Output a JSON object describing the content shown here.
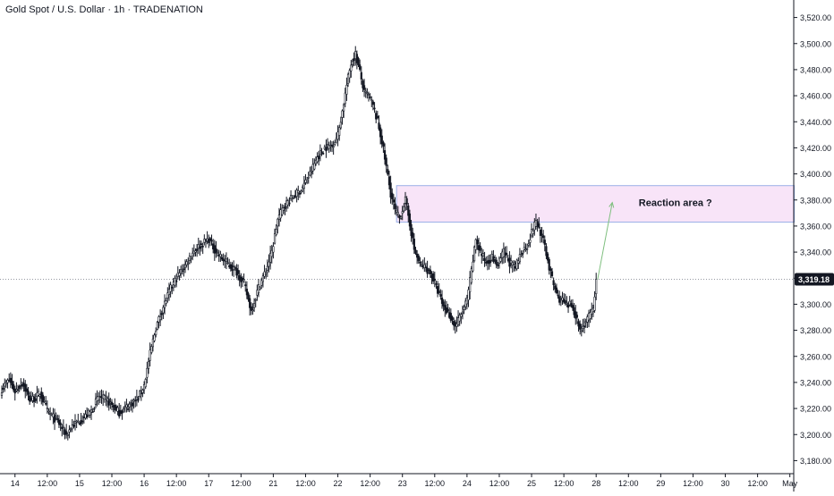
{
  "header": {
    "symbol_title": "Gold Spot / U.S. Dollar · 1h · TRADENATION"
  },
  "colors": {
    "candle": "#131722",
    "zone_fill": "#f8e4f8",
    "zone_border": "#9bb0e8",
    "arrow": "#7fbf7f",
    "price_line": "#9598a1",
    "price_label_bg": "#131722",
    "axis": "#131722",
    "axis_text": "#131722"
  },
  "chart_data": {
    "type": "candlestick",
    "title": "Gold Spot / U.S. Dollar · 1h · TRADENATION",
    "ylim": [
      3170,
      3530
    ],
    "y_ticks": [
      {
        "value": 3180,
        "label": "3,180.00"
      },
      {
        "value": 3200,
        "label": "3,200.00"
      },
      {
        "value": 3220,
        "label": "3,220.00"
      },
      {
        "value": 3240,
        "label": "3,240.00"
      },
      {
        "value": 3260,
        "label": "3,260.00"
      },
      {
        "value": 3280,
        "label": "3,280.00"
      },
      {
        "value": 3300,
        "label": "3,300.00"
      },
      {
        "value": 3320,
        "label": "3,320.00"
      },
      {
        "value": 3340,
        "label": "3,340.00"
      },
      {
        "value": 3360,
        "label": "3,360.00"
      },
      {
        "value": 3380,
        "label": "3,380.00"
      },
      {
        "value": 3400,
        "label": "3,400.00"
      },
      {
        "value": 3420,
        "label": "3,420.00"
      },
      {
        "value": 3440,
        "label": "3,440.00"
      },
      {
        "value": 3460,
        "label": "3,460.00"
      },
      {
        "value": 3480,
        "label": "3,480.00"
      },
      {
        "value": 3500,
        "label": "3,500.00"
      },
      {
        "value": 3520,
        "label": "3,520.00"
      }
    ],
    "x_ticks": [
      {
        "bar": 9,
        "label": "14"
      },
      {
        "bar": 31,
        "label": "12:00"
      },
      {
        "bar": 53,
        "label": "15"
      },
      {
        "bar": 75,
        "label": "12:00"
      },
      {
        "bar": 97,
        "label": "16"
      },
      {
        "bar": 119,
        "label": "12:00"
      },
      {
        "bar": 141,
        "label": "17"
      },
      {
        "bar": 163,
        "label": "12:00"
      },
      {
        "bar": 185,
        "label": "21"
      },
      {
        "bar": 207,
        "label": "12:00"
      },
      {
        "bar": 229,
        "label": "22"
      },
      {
        "bar": 251,
        "label": "12:00"
      },
      {
        "bar": 273,
        "label": "23"
      },
      {
        "bar": 295,
        "label": "12:00"
      },
      {
        "bar": 317,
        "label": "24"
      },
      {
        "bar": 339,
        "label": "12:00"
      },
      {
        "bar": 361,
        "label": "25"
      },
      {
        "bar": 383,
        "label": "12:00"
      },
      {
        "bar": 405,
        "label": "28"
      },
      {
        "bar": 427,
        "label": "12:00"
      },
      {
        "bar": 449,
        "label": "29"
      },
      {
        "bar": 471,
        "label": "12:00"
      },
      {
        "bar": 493,
        "label": "30"
      },
      {
        "bar": 515,
        "label": "12:00"
      },
      {
        "bar": 537,
        "label": "May"
      }
    ],
    "keypoints": [
      [
        0,
        3235
      ],
      [
        5,
        3242
      ],
      [
        9,
        3233
      ],
      [
        14,
        3240
      ],
      [
        19,
        3227
      ],
      [
        23,
        3228
      ],
      [
        26,
        3232
      ],
      [
        31,
        3218
      ],
      [
        38,
        3210
      ],
      [
        44,
        3200
      ],
      [
        48,
        3207
      ],
      [
        55,
        3212
      ],
      [
        61,
        3218
      ],
      [
        66,
        3229
      ],
      [
        72,
        3226
      ],
      [
        80,
        3217
      ],
      [
        86,
        3222
      ],
      [
        93,
        3228
      ],
      [
        97,
        3238
      ],
      [
        101,
        3262
      ],
      [
        105,
        3282
      ],
      [
        110,
        3298
      ],
      [
        115,
        3312
      ],
      [
        120,
        3322
      ],
      [
        125,
        3330
      ],
      [
        130,
        3340
      ],
      [
        135,
        3345
      ],
      [
        141,
        3350
      ],
      [
        145,
        3342
      ],
      [
        150,
        3335
      ],
      [
        155,
        3330
      ],
      [
        160,
        3325
      ],
      [
        165,
        3316
      ],
      [
        170,
        3295
      ],
      [
        175,
        3313
      ],
      [
        180,
        3326
      ],
      [
        184,
        3340
      ],
      [
        188,
        3365
      ],
      [
        192,
        3375
      ],
      [
        198,
        3382
      ],
      [
        204,
        3388
      ],
      [
        210,
        3400
      ],
      [
        215,
        3413
      ],
      [
        220,
        3420
      ],
      [
        225,
        3422
      ],
      [
        229,
        3430
      ],
      [
        232,
        3448
      ],
      [
        235,
        3468
      ],
      [
        238,
        3485
      ],
      [
        241,
        3492
      ],
      [
        244,
        3478
      ],
      [
        247,
        3462
      ],
      [
        250,
        3460
      ],
      [
        253,
        3452
      ],
      [
        256,
        3440
      ],
      [
        259,
        3425
      ],
      [
        262,
        3405
      ],
      [
        265,
        3385
      ],
      [
        268,
        3372
      ],
      [
        271,
        3366
      ],
      [
        275,
        3380
      ],
      [
        278,
        3362
      ],
      [
        281,
        3342
      ],
      [
        285,
        3330
      ],
      [
        289,
        3328
      ],
      [
        293,
        3322
      ],
      [
        297,
        3310
      ],
      [
        301,
        3298
      ],
      [
        305,
        3292
      ],
      [
        309,
        3283
      ],
      [
        313,
        3292
      ],
      [
        317,
        3303
      ],
      [
        320,
        3325
      ],
      [
        323,
        3350
      ],
      [
        326,
        3340
      ],
      [
        330,
        3332
      ],
      [
        334,
        3336
      ],
      [
        338,
        3330
      ],
      [
        342,
        3340
      ],
      [
        346,
        3332
      ],
      [
        350,
        3328
      ],
      [
        354,
        3340
      ],
      [
        358,
        3345
      ],
      [
        361,
        3355
      ],
      [
        364,
        3364
      ],
      [
        367,
        3355
      ],
      [
        370,
        3345
      ],
      [
        373,
        3328
      ],
      [
        376,
        3315
      ],
      [
        379,
        3305
      ],
      [
        382,
        3303
      ],
      [
        385,
        3298
      ],
      [
        388,
        3300
      ],
      [
        391,
        3292
      ],
      [
        394,
        3280
      ],
      [
        397,
        3285
      ],
      [
        400,
        3290
      ],
      [
        403,
        3296
      ],
      [
        405,
        3319.18
      ]
    ],
    "current_price": {
      "value": 3319.18,
      "label": "3,319.18"
    },
    "reaction_zone": {
      "bar_from": 269,
      "bar_to": 540,
      "low": 3363,
      "high": 3391
    },
    "arrow": {
      "bar_from": 406,
      "value_from": 3319,
      "bar_to": 416,
      "value_to": 3378
    },
    "annotation": {
      "text": "Reaction area ?",
      "bar": 459,
      "value": 3378
    }
  }
}
